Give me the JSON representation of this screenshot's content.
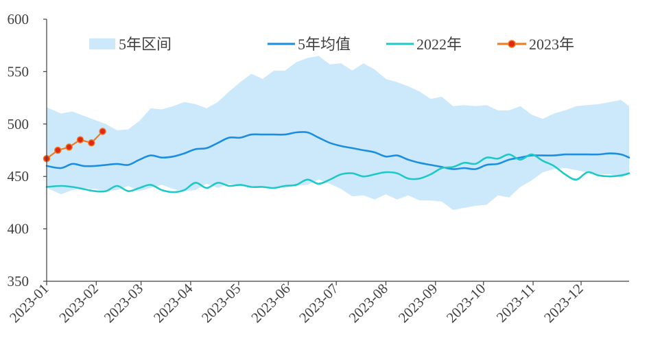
{
  "chart_data": {
    "type": "area",
    "title": "",
    "xlabel": "",
    "ylabel": "",
    "ylim": [
      350,
      600
    ],
    "yticks": [
      350,
      400,
      450,
      500,
      550,
      600
    ],
    "xlim": [
      "2023-01-01",
      "2023-12-31"
    ],
    "xticks": [
      "2023-01",
      "2023-02",
      "2023-03",
      "2023-04",
      "2023-05",
      "2023-06",
      "2023-07",
      "2023-08",
      "2023-09",
      "2023-10",
      "2023-11",
      "2023-12"
    ],
    "grid": false,
    "legend_position": "top",
    "range_band": {
      "name": "5年区间",
      "color": "#cce9fb",
      "x": [
        "2023-01-01",
        "2023-01-10",
        "2023-01-17",
        "2023-01-24",
        "2023-01-31",
        "2023-02-07",
        "2023-02-14",
        "2023-02-21",
        "2023-02-28",
        "2023-03-07",
        "2023-03-14",
        "2023-03-21",
        "2023-03-28",
        "2023-04-04",
        "2023-04-11",
        "2023-04-18",
        "2023-04-25",
        "2023-05-02",
        "2023-05-09",
        "2023-05-16",
        "2023-05-23",
        "2023-05-30",
        "2023-06-06",
        "2023-06-13",
        "2023-06-20",
        "2023-06-27",
        "2023-07-04",
        "2023-07-11",
        "2023-07-18",
        "2023-07-25",
        "2023-08-01",
        "2023-08-08",
        "2023-08-15",
        "2023-08-22",
        "2023-08-29",
        "2023-09-05",
        "2023-09-12",
        "2023-09-19",
        "2023-09-26",
        "2023-10-03",
        "2023-10-10",
        "2023-10-17",
        "2023-10-24",
        "2023-10-31",
        "2023-11-07",
        "2023-11-14",
        "2023-11-21",
        "2023-11-28",
        "2023-12-05",
        "2023-12-12",
        "2023-12-19",
        "2023-12-26",
        "2023-12-31"
      ],
      "upper": [
        516,
        510,
        512,
        508,
        504,
        500,
        494,
        495,
        503,
        515,
        514,
        517,
        521,
        519,
        515,
        521,
        531,
        540,
        548,
        543,
        551,
        551,
        559,
        563,
        565,
        557,
        558,
        551,
        558,
        552,
        543,
        540,
        536,
        531,
        524,
        526,
        517,
        518,
        517,
        518,
        513,
        513,
        517,
        509,
        505,
        510,
        513,
        517,
        518,
        519,
        521,
        523,
        517
      ],
      "lower": [
        439,
        433,
        437,
        439,
        438,
        436,
        437,
        441,
        436,
        439,
        442,
        438,
        436,
        437,
        443,
        439,
        443,
        441,
        441,
        440,
        440,
        439,
        441,
        442,
        447,
        443,
        438,
        431,
        432,
        428,
        433,
        428,
        432,
        427,
        427,
        426,
        418,
        420,
        422,
        423,
        432,
        430,
        440,
        446,
        454,
        457,
        458,
        456,
        454,
        452,
        452,
        449,
        452
      ]
    },
    "series": [
      {
        "name": "5年均值",
        "color": "#1a8ee0",
        "x": [
          "2023-01-01",
          "2023-01-10",
          "2023-01-17",
          "2023-01-24",
          "2023-01-31",
          "2023-02-07",
          "2023-02-14",
          "2023-02-21",
          "2023-02-28",
          "2023-03-07",
          "2023-03-14",
          "2023-03-21",
          "2023-03-28",
          "2023-04-04",
          "2023-04-11",
          "2023-04-18",
          "2023-04-25",
          "2023-05-02",
          "2023-05-09",
          "2023-05-16",
          "2023-05-23",
          "2023-05-30",
          "2023-06-06",
          "2023-06-13",
          "2023-06-20",
          "2023-06-27",
          "2023-07-04",
          "2023-07-11",
          "2023-07-18",
          "2023-07-25",
          "2023-08-01",
          "2023-08-08",
          "2023-08-15",
          "2023-08-22",
          "2023-08-29",
          "2023-09-05",
          "2023-09-12",
          "2023-09-19",
          "2023-09-26",
          "2023-10-03",
          "2023-10-10",
          "2023-10-17",
          "2023-10-24",
          "2023-10-31",
          "2023-11-07",
          "2023-11-14",
          "2023-11-21",
          "2023-11-28",
          "2023-12-05",
          "2023-12-12",
          "2023-12-19",
          "2023-12-26",
          "2023-12-31"
        ],
        "values": [
          460,
          458,
          462,
          460,
          460,
          461,
          462,
          461,
          466,
          470,
          468,
          469,
          472,
          476,
          477,
          482,
          487,
          487,
          490,
          490,
          490,
          490,
          492,
          492,
          487,
          482,
          479,
          477,
          475,
          473,
          469,
          470,
          466,
          463,
          461,
          459,
          457,
          458,
          457,
          461,
          462,
          466,
          468,
          470,
          470,
          470,
          471,
          471,
          471,
          471,
          472,
          471,
          468
        ]
      },
      {
        "name": "2022年",
        "color": "#1ec8c8",
        "x": [
          "2023-01-01",
          "2023-01-10",
          "2023-01-17",
          "2023-01-24",
          "2023-01-31",
          "2023-02-07",
          "2023-02-14",
          "2023-02-21",
          "2023-02-28",
          "2023-03-07",
          "2023-03-14",
          "2023-03-21",
          "2023-03-28",
          "2023-04-04",
          "2023-04-11",
          "2023-04-18",
          "2023-04-25",
          "2023-05-02",
          "2023-05-09",
          "2023-05-16",
          "2023-05-23",
          "2023-05-30",
          "2023-06-06",
          "2023-06-13",
          "2023-06-20",
          "2023-06-27",
          "2023-07-04",
          "2023-07-11",
          "2023-07-18",
          "2023-07-25",
          "2023-08-01",
          "2023-08-08",
          "2023-08-15",
          "2023-08-22",
          "2023-08-29",
          "2023-09-05",
          "2023-09-12",
          "2023-09-19",
          "2023-09-26",
          "2023-10-03",
          "2023-10-10",
          "2023-10-17",
          "2023-10-24",
          "2023-10-31",
          "2023-11-07",
          "2023-11-14",
          "2023-11-21",
          "2023-11-28",
          "2023-12-05",
          "2023-12-12",
          "2023-12-19",
          "2023-12-26",
          "2023-12-31"
        ],
        "values": [
          440,
          441,
          440,
          438,
          436,
          436,
          441,
          436,
          439,
          442,
          437,
          435,
          437,
          444,
          439,
          444,
          441,
          442,
          440,
          440,
          439,
          441,
          442,
          447,
          443,
          447,
          452,
          453,
          450,
          452,
          454,
          453,
          448,
          448,
          452,
          458,
          459,
          463,
          462,
          468,
          467,
          471,
          466,
          471,
          465,
          460,
          452,
          447,
          454,
          451,
          450,
          451,
          453
        ]
      },
      {
        "name": "2023年",
        "color": "#f07a1e",
        "marker_color": "#e02818",
        "x": [
          "2023-01-01",
          "2023-01-08",
          "2023-01-15",
          "2023-01-22",
          "2023-01-29",
          "2023-02-05"
        ],
        "values": [
          467,
          475,
          478,
          485,
          482,
          493
        ]
      }
    ]
  }
}
